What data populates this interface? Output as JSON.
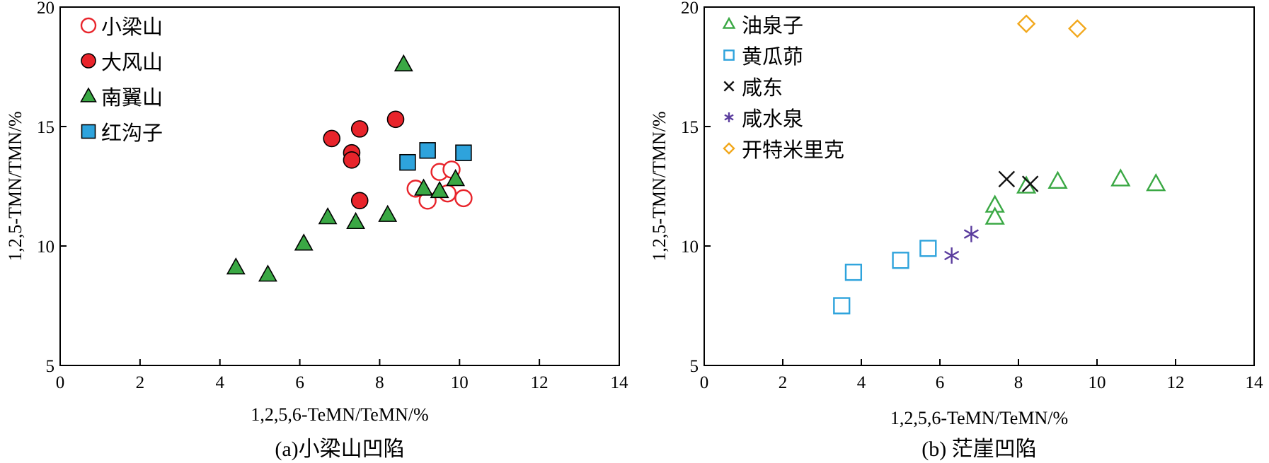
{
  "chart_data": [
    {
      "type": "scatter",
      "caption": "(a)小梁山凹陷",
      "xlabel": "1,2,5,6-TeMN/TeMN/%",
      "ylabel": "1,2,5-TMN/TMN/%",
      "xlim": [
        0,
        14
      ],
      "ylim": [
        5,
        20
      ],
      "xticks": [
        0,
        2,
        4,
        6,
        8,
        10,
        12,
        14
      ],
      "yticks": [
        5,
        10,
        15,
        20
      ],
      "legend_position": "top-left",
      "series": [
        {
          "name": "小梁山",
          "marker": "circle-open",
          "color": "#e8242b",
          "points": [
            [
              8.9,
              12.4
            ],
            [
              9.2,
              11.9
            ],
            [
              9.5,
              13.1
            ],
            [
              9.7,
              12.2
            ],
            [
              9.8,
              13.2
            ],
            [
              10.1,
              12.0
            ]
          ]
        },
        {
          "name": "大风山",
          "marker": "circle-filled",
          "color": "#e8242b",
          "points": [
            [
              6.8,
              14.5
            ],
            [
              7.3,
              13.9
            ],
            [
              7.3,
              13.6
            ],
            [
              7.5,
              14.9
            ],
            [
              7.5,
              11.9
            ],
            [
              8.4,
              15.3
            ]
          ]
        },
        {
          "name": "南翼山",
          "marker": "triangle-filled",
          "color": "#3aa844",
          "points": [
            [
              4.4,
              9.1
            ],
            [
              5.2,
              8.8
            ],
            [
              6.1,
              10.1
            ],
            [
              6.7,
              11.2
            ],
            [
              7.4,
              11.0
            ],
            [
              8.2,
              11.3
            ],
            [
              8.6,
              17.6
            ],
            [
              9.1,
              12.4
            ],
            [
              9.5,
              12.3
            ],
            [
              9.9,
              12.8
            ]
          ]
        },
        {
          "name": "红沟子",
          "marker": "square-filled",
          "color": "#2ea3dc",
          "points": [
            [
              8.7,
              13.5
            ],
            [
              9.2,
              14.0
            ],
            [
              10.1,
              13.9
            ]
          ]
        }
      ]
    },
    {
      "type": "scatter",
      "caption": "(b) 茫崖凹陷",
      "xlabel": "1,2,5,6-TeMN/TeMN/%",
      "ylabel": "1,2,5-TMN/TMN/%",
      "xlim": [
        0,
        14
      ],
      "ylim": [
        5,
        20
      ],
      "xticks": [
        0,
        2,
        4,
        6,
        8,
        10,
        12,
        14
      ],
      "yticks": [
        5,
        10,
        15,
        20
      ],
      "legend_position": "top-left",
      "series": [
        {
          "name": "油泉子",
          "marker": "triangle-open",
          "color": "#3aa844",
          "points": [
            [
              7.4,
              11.7
            ],
            [
              7.4,
              11.2
            ],
            [
              8.2,
              12.5
            ],
            [
              9.0,
              12.7
            ],
            [
              10.6,
              12.8
            ],
            [
              11.5,
              12.6
            ]
          ]
        },
        {
          "name": "黄瓜茆",
          "marker": "square-open",
          "color": "#2ea3dc",
          "points": [
            [
              3.5,
              7.5
            ],
            [
              3.8,
              8.9
            ],
            [
              5.0,
              9.4
            ],
            [
              5.7,
              9.9
            ]
          ]
        },
        {
          "name": "咸东",
          "marker": "x",
          "color": "#111111",
          "points": [
            [
              7.7,
              12.8
            ],
            [
              8.3,
              12.6
            ]
          ]
        },
        {
          "name": "咸水泉",
          "marker": "asterisk",
          "color": "#5b3d9e",
          "points": [
            [
              6.3,
              9.6
            ],
            [
              6.8,
              10.5
            ]
          ]
        },
        {
          "name": "开特米里克",
          "marker": "diamond-open",
          "color": "#f2a81d",
          "points": [
            [
              8.2,
              19.3
            ],
            [
              9.5,
              19.1
            ]
          ]
        }
      ]
    }
  ]
}
